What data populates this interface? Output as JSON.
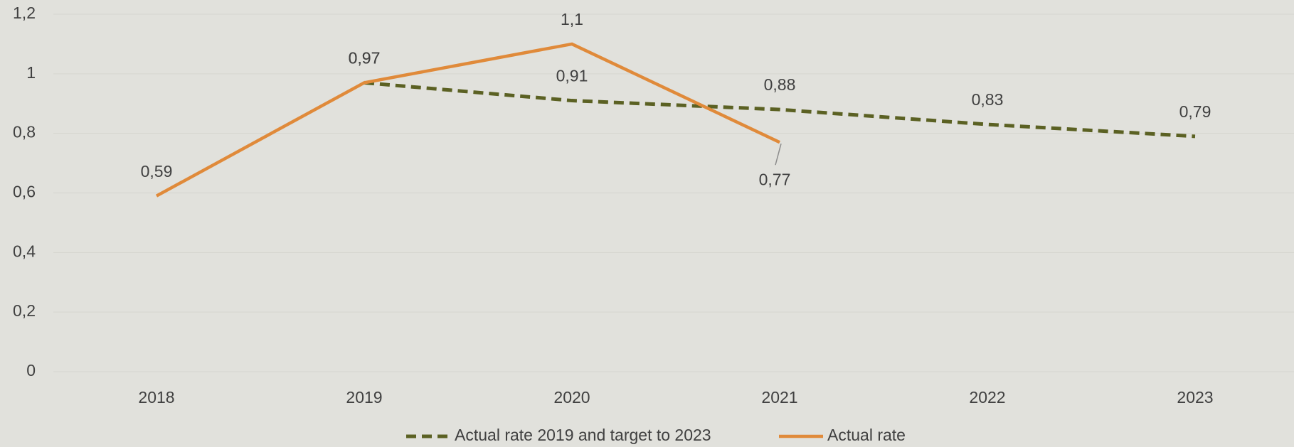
{
  "chart_data": {
    "type": "line",
    "categories": [
      "2018",
      "2019",
      "2020",
      "2021",
      "2022",
      "2023"
    ],
    "series": [
      {
        "name": "Actual rate 2019 and target to 2023",
        "color": "#5b6123",
        "dashed": true,
        "values": [
          null,
          0.97,
          0.91,
          0.88,
          0.83,
          0.79
        ],
        "value_labels": [
          null,
          "0,97",
          "0,91",
          "0,88",
          "0,83",
          "0,79"
        ]
      },
      {
        "name": "Actual rate",
        "color": "#e08a3a",
        "dashed": false,
        "values": [
          0.59,
          0.97,
          1.1,
          0.77,
          null,
          null
        ],
        "value_labels": [
          "0,59",
          "0,97",
          "1,1",
          "0,77",
          null,
          null
        ]
      }
    ],
    "ylim": [
      0,
      1.2
    ],
    "yticks": [
      0,
      {
        "value": 0.2,
        "label": "0,2"
      },
      {
        "value": 0.4,
        "label": "0,4"
      },
      {
        "value": 0.6,
        "label": "0,6"
      },
      {
        "value": 0.8,
        "label": "0,8"
      },
      1,
      {
        "value": 1.2,
        "label": "1,2"
      }
    ],
    "grid": true,
    "legend": "bottom"
  }
}
